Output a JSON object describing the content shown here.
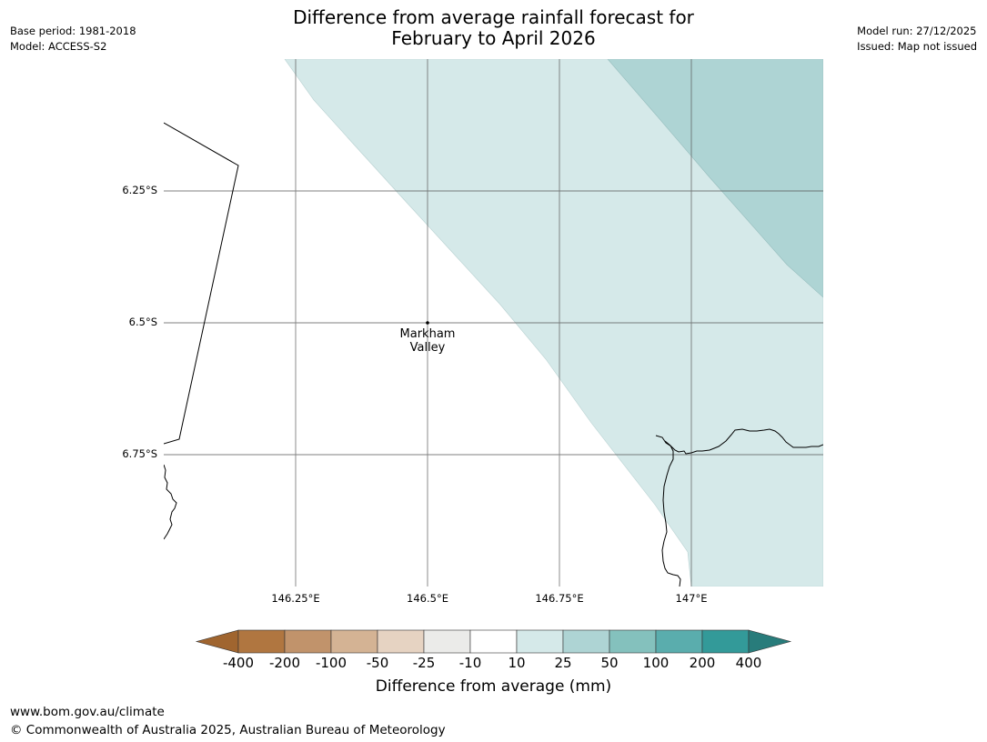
{
  "header": {
    "title_line1": "Difference from average rainfall forecast for",
    "title_line2": "February to April 2026",
    "base_period": "Base period: 1981-2018",
    "model": "Model: ACCESS-S2",
    "model_run": "Model run: 27/12/2025",
    "issued": "Issued: Map not issued"
  },
  "map": {
    "lat_labels": [
      "6.25°S",
      "6.5°S",
      "6.75°S"
    ],
    "lon_labels": [
      "146.25°E",
      "146.5°E",
      "146.75°E",
      "147°E"
    ],
    "place": {
      "name_line1": "Markham",
      "name_line2": "Valley",
      "lat": -6.5,
      "lon": 146.5
    },
    "extent": {
      "lon_min": 146.0,
      "lon_max": 147.25,
      "lat_min": -7.0,
      "lat_max": -6.0
    },
    "zones": [
      {
        "category": "10 to 25",
        "color": "#d5e9e9"
      },
      {
        "category": "25 to 50",
        "color": "#aed4d4"
      }
    ]
  },
  "colorbar": {
    "title": "Difference from average (mm)",
    "ticks": [
      "-400",
      "-200",
      "-100",
      "-50",
      "-25",
      "-10",
      "10",
      "25",
      "50",
      "100",
      "200",
      "400"
    ],
    "colors": [
      "#a0652f",
      "#b07640",
      "#c1936b",
      "#d4b394",
      "#e6d3c2",
      "#ebebe9",
      "#ffffff",
      "#d5e9e9",
      "#aed4d4",
      "#84c1bd",
      "#5aadad",
      "#339a99",
      "#287c7b"
    ]
  },
  "footer": {
    "url": "www.bom.gov.au/climate",
    "copyright": "© Commonwealth of Australia 2025, Australian Bureau of Meteorology"
  }
}
